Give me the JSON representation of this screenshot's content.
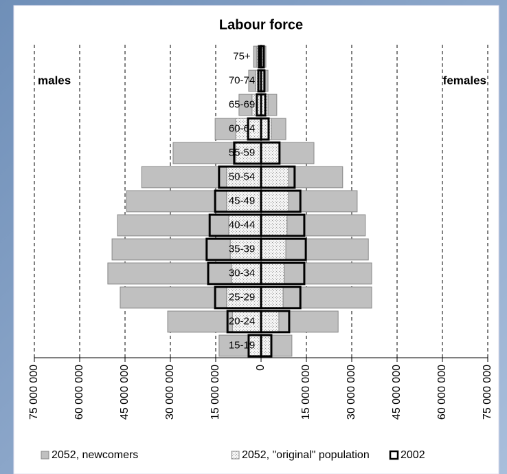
{
  "chart_data": {
    "type": "pyramid",
    "title": "Labour force",
    "left_label": "males",
    "right_label": "females",
    "categories": [
      "15-19",
      "20-24",
      "25-29",
      "30-34",
      "35-39",
      "40-44",
      "45-49",
      "50-54",
      "55-59",
      "60-64",
      "65-69",
      "70-74",
      "75+"
    ],
    "series": [
      {
        "name": "2052, newcomers",
        "color": "#c0c0c0",
        "stack_on": 1,
        "males": [
          9800000,
          21400000,
          35200000,
          40900000,
          39100000,
          36800000,
          33100000,
          28100000,
          20700000,
          6800000,
          4300000,
          2300000,
          1100000
        ],
        "females": [
          6800000,
          19600000,
          29300000,
          28900000,
          27300000,
          25900000,
          22700000,
          17900000,
          11400000,
          4800000,
          2900000,
          900000,
          500000
        ]
      },
      {
        "name": "2052, \"original\" population",
        "color": "#d9d9d9",
        "males": [
          4100000,
          9500000,
          11400000,
          9800000,
          10200000,
          10700000,
          11400000,
          11400000,
          8400000,
          8400000,
          3000000,
          1800000,
          1400000
        ],
        "females": [
          3400000,
          5900000,
          7300000,
          7700000,
          8200000,
          8600000,
          9100000,
          9100000,
          6100000,
          3400000,
          2300000,
          1400000,
          1100000
        ]
      },
      {
        "name": "2002",
        "color": "#000000",
        "outline": true,
        "males": [
          4100000,
          11100000,
          15200000,
          17500000,
          18000000,
          17000000,
          15200000,
          13900000,
          8900000,
          4300000,
          1400000,
          900000,
          700000
        ],
        "females": [
          3400000,
          9300000,
          13000000,
          14300000,
          14800000,
          14300000,
          13000000,
          11100000,
          6100000,
          2500000,
          1400000,
          1100000,
          900000
        ]
      }
    ],
    "xlim": [
      -75000000,
      75000000
    ],
    "xticks": [
      {
        "value": -75000000,
        "label": "75 000 000"
      },
      {
        "value": -60000000,
        "label": "60 000 000"
      },
      {
        "value": -45000000,
        "label": "45 000 000"
      },
      {
        "value": -30000000,
        "label": "30 000 000"
      },
      {
        "value": -15000000,
        "label": "15 000 000"
      },
      0,
      {
        "value": 15000000,
        "label": "15 000 000"
      },
      {
        "value": 30000000,
        "label": "30 000 000"
      },
      {
        "value": 45000000,
        "label": "45 000 000"
      },
      {
        "value": 60000000,
        "label": "60 000 000"
      },
      {
        "value": 75000000,
        "label": "75 000 000"
      }
    ],
    "grid": true
  }
}
